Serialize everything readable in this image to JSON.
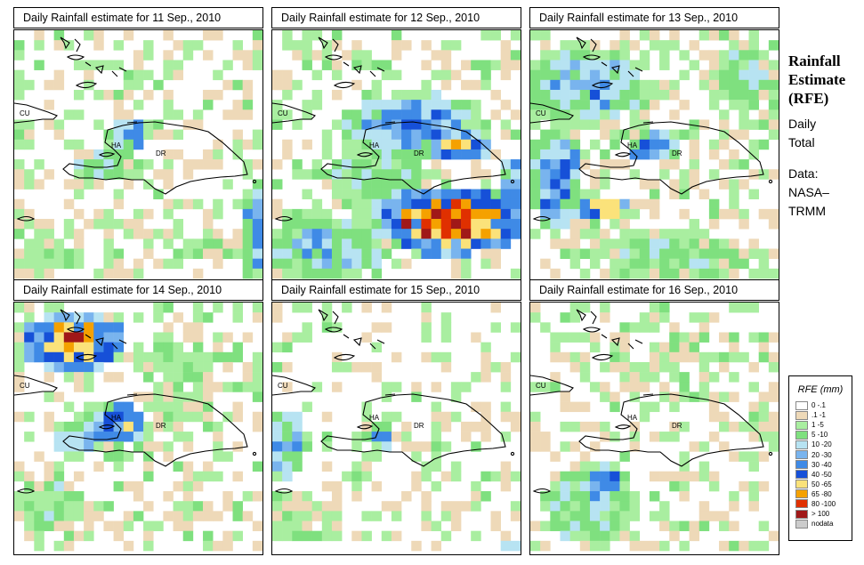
{
  "panels": [
    {
      "title": "Daily Rainfall estimate for  11 Sep., 2010",
      "map_labels": {
        "cuba": "CU",
        "haiti": "HA",
        "dominican_republic": "DR"
      }
    },
    {
      "title": "Daily Rainfall estimate for  12 Sep., 2010",
      "map_labels": {
        "cuba": "CU",
        "haiti": "HA",
        "dominican_republic": "DR"
      }
    },
    {
      "title": "Daily Rainfall estimate for  13 Sep., 2010",
      "map_labels": {
        "cuba": "CU",
        "haiti": "HA",
        "dominican_republic": "DR"
      }
    },
    {
      "title": "Daily Rainfall estimate for  14 Sep., 2010",
      "map_labels": {
        "cuba": "CU",
        "haiti": "HA",
        "dominican_republic": "DR"
      }
    },
    {
      "title": "Daily Rainfall estimate for  15 Sep., 2010",
      "map_labels": {
        "cuba": "CU",
        "haiti": "HA",
        "dominican_republic": "DR"
      }
    },
    {
      "title": "Daily Rainfall estimate for  16 Sep., 2010",
      "map_labels": {
        "cuba": "CU",
        "haiti": "HA",
        "dominican_republic": "DR"
      }
    }
  ],
  "sidebar": {
    "title_line1": "Rainfall",
    "title_line2": "Estimate",
    "title_line3": "(RFE)",
    "daily_line1": "Daily",
    "daily_line2": "Total",
    "data_line1": "Data:",
    "data_line2": "NASA–",
    "data_line3": "TRMM"
  },
  "legend": {
    "title": "RFE (mm)",
    "items": [
      {
        "label": "0 -.1",
        "color": "#ffffff"
      },
      {
        "label": ".1 -1",
        "color": "#eed9b8"
      },
      {
        "label": "1 -5",
        "color": "#a9eea0"
      },
      {
        "label": "5 -10",
        "color": "#7fe07f"
      },
      {
        "label": "10 -20",
        "color": "#b7e3f2"
      },
      {
        "label": "20 -30",
        "color": "#79b4ee"
      },
      {
        "label": "30 -40",
        "color": "#3f8ae6"
      },
      {
        "label": "40 -50",
        "color": "#1650d8"
      },
      {
        "label": "50 -65",
        "color": "#fbe27a"
      },
      {
        "label": "65 -80",
        "color": "#f5a100"
      },
      {
        "label": "80 -100",
        "color": "#e03000"
      },
      {
        "label": "> 100",
        "color": "#a01818"
      },
      {
        "label": "nodata",
        "color": "#cccccc"
      }
    ]
  }
}
